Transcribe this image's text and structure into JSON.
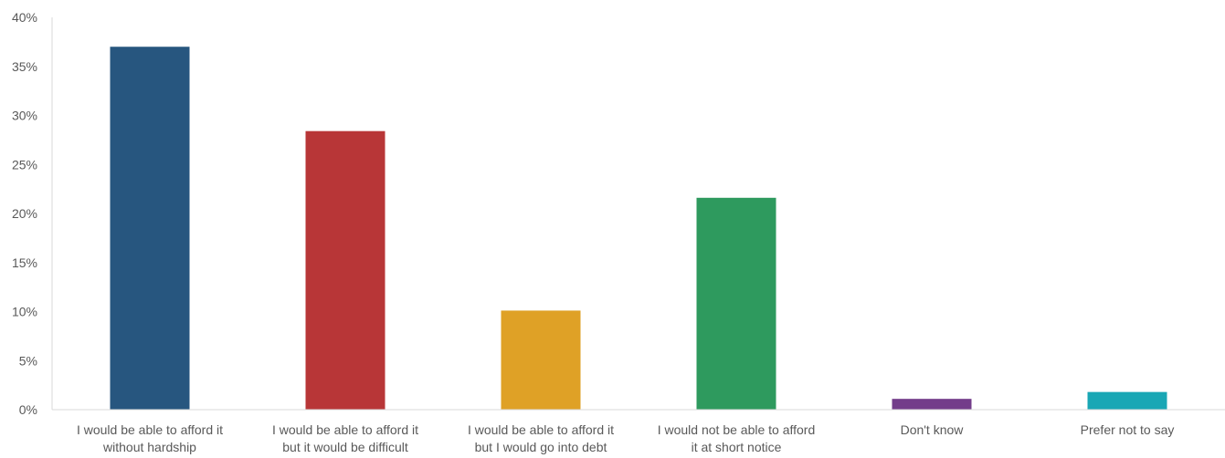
{
  "chart_data": {
    "type": "bar",
    "title": "",
    "xlabel": "",
    "ylabel": "",
    "categories": [
      [
        "I would be able to afford it",
        "without hardship"
      ],
      [
        "I would be able to afford it",
        "but it would be difficult"
      ],
      [
        "I would be able to afford it",
        "but I would go into debt"
      ],
      [
        "I would not be able to afford",
        "it at short notice"
      ],
      [
        "Don't know"
      ],
      [
        "Prefer not to say"
      ]
    ],
    "values": [
      37.0,
      28.4,
      10.1,
      21.6,
      1.1,
      1.8
    ],
    "colors": [
      "#27567f",
      "#b83637",
      "#dfa126",
      "#2e9a5e",
      "#733d8a",
      "#19a7b5"
    ],
    "ylim": [
      0,
      40
    ],
    "yticks": [
      0,
      5,
      10,
      15,
      20,
      25,
      30,
      35,
      40
    ],
    "ytick_labels": [
      "0%",
      "5%",
      "10%",
      "15%",
      "20%",
      "25%",
      "30%",
      "35%",
      "40%"
    ],
    "grid": false,
    "legend": "none"
  }
}
